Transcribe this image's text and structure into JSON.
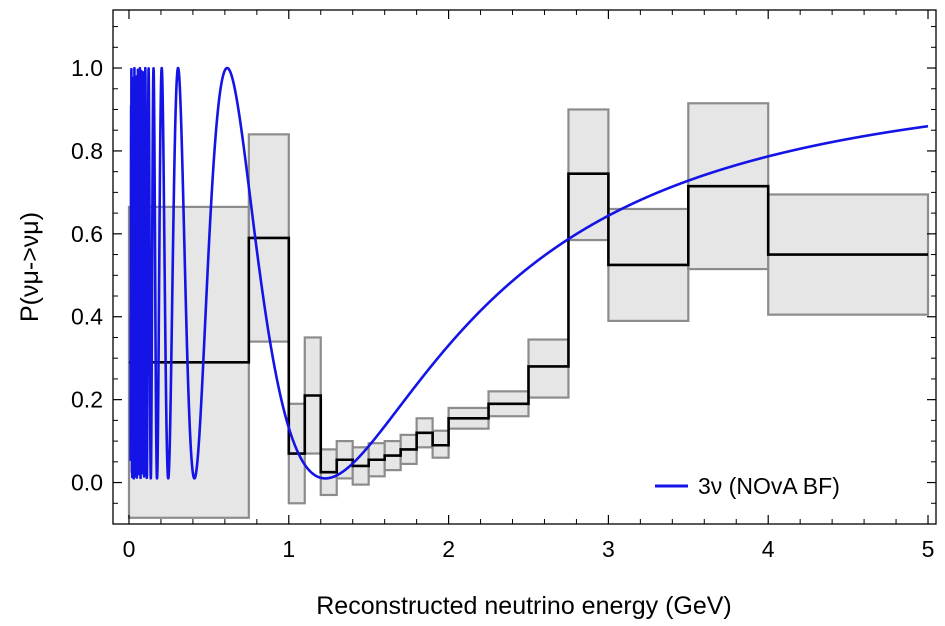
{
  "chart_data": {
    "type": "line",
    "xlabel": "Reconstructed neutrino energy (GeV)",
    "ylabel": "P(νμ->νμ)",
    "xlim": [
      -0.1,
      5.05
    ],
    "ylim": [
      -0.1,
      1.14
    ],
    "x_ticks": [
      "0",
      "1",
      "2",
      "3",
      "4",
      "5"
    ],
    "y_ticks": [
      "0.0",
      "0.2",
      "0.4",
      "0.6",
      "0.8",
      "1.0"
    ],
    "grid": false,
    "legend": {
      "position": "bottom-right",
      "entries": [
        "3ν (NOvA BF)"
      ]
    },
    "colors": {
      "curve": "#1414e6",
      "step": "#000000",
      "band_fill": "#e6e6e6",
      "band_edge": "#8c8c8c"
    },
    "measured": {
      "bins": [
        {
          "x0": 0.0,
          "x1": 0.75,
          "y": 0.29,
          "lo": -0.085,
          "hi": 0.665
        },
        {
          "x0": 0.75,
          "x1": 1.0,
          "y": 0.59,
          "lo": 0.34,
          "hi": 0.84
        },
        {
          "x0": 1.0,
          "x1": 1.1,
          "y": 0.07,
          "lo": -0.05,
          "hi": 0.19
        },
        {
          "x0": 1.1,
          "x1": 1.2,
          "y": 0.21,
          "lo": 0.07,
          "hi": 0.35
        },
        {
          "x0": 1.2,
          "x1": 1.3,
          "y": 0.025,
          "lo": -0.03,
          "hi": 0.08
        },
        {
          "x0": 1.3,
          "x1": 1.4,
          "y": 0.055,
          "lo": 0.01,
          "hi": 0.1
        },
        {
          "x0": 1.4,
          "x1": 1.5,
          "y": 0.04,
          "lo": -0.005,
          "hi": 0.085
        },
        {
          "x0": 1.5,
          "x1": 1.6,
          "y": 0.055,
          "lo": 0.015,
          "hi": 0.095
        },
        {
          "x0": 1.6,
          "x1": 1.7,
          "y": 0.065,
          "lo": 0.03,
          "hi": 0.1
        },
        {
          "x0": 1.7,
          "x1": 1.8,
          "y": 0.08,
          "lo": 0.045,
          "hi": 0.115
        },
        {
          "x0": 1.8,
          "x1": 1.9,
          "y": 0.12,
          "lo": 0.085,
          "hi": 0.155
        },
        {
          "x0": 1.9,
          "x1": 2.0,
          "y": 0.09,
          "lo": 0.06,
          "hi": 0.125
        },
        {
          "x0": 2.0,
          "x1": 2.25,
          "y": 0.155,
          "lo": 0.13,
          "hi": 0.18
        },
        {
          "x0": 2.25,
          "x1": 2.5,
          "y": 0.19,
          "lo": 0.16,
          "hi": 0.22
        },
        {
          "x0": 2.5,
          "x1": 2.75,
          "y": 0.28,
          "lo": 0.205,
          "hi": 0.345
        },
        {
          "x0": 2.75,
          "x1": 3.0,
          "y": 0.745,
          "lo": 0.585,
          "hi": 0.9
        },
        {
          "x0": 3.0,
          "x1": 3.5,
          "y": 0.525,
          "lo": 0.39,
          "hi": 0.66
        },
        {
          "x0": 3.5,
          "x1": 4.0,
          "y": 0.715,
          "lo": 0.515,
          "hi": 0.915
        },
        {
          "x0": 4.0,
          "x1": 5.0,
          "y": 0.55,
          "lo": 0.405,
          "hi": 0.695
        }
      ]
    },
    "series": [
      {
        "name": "3ν (NOvA BF)",
        "model": "P = 1 - A*sin^2(k*L/E)",
        "params": {
          "A": 0.99,
          "k": 1.93
        },
        "x_range": [
          0.01,
          5.0
        ]
      }
    ]
  }
}
